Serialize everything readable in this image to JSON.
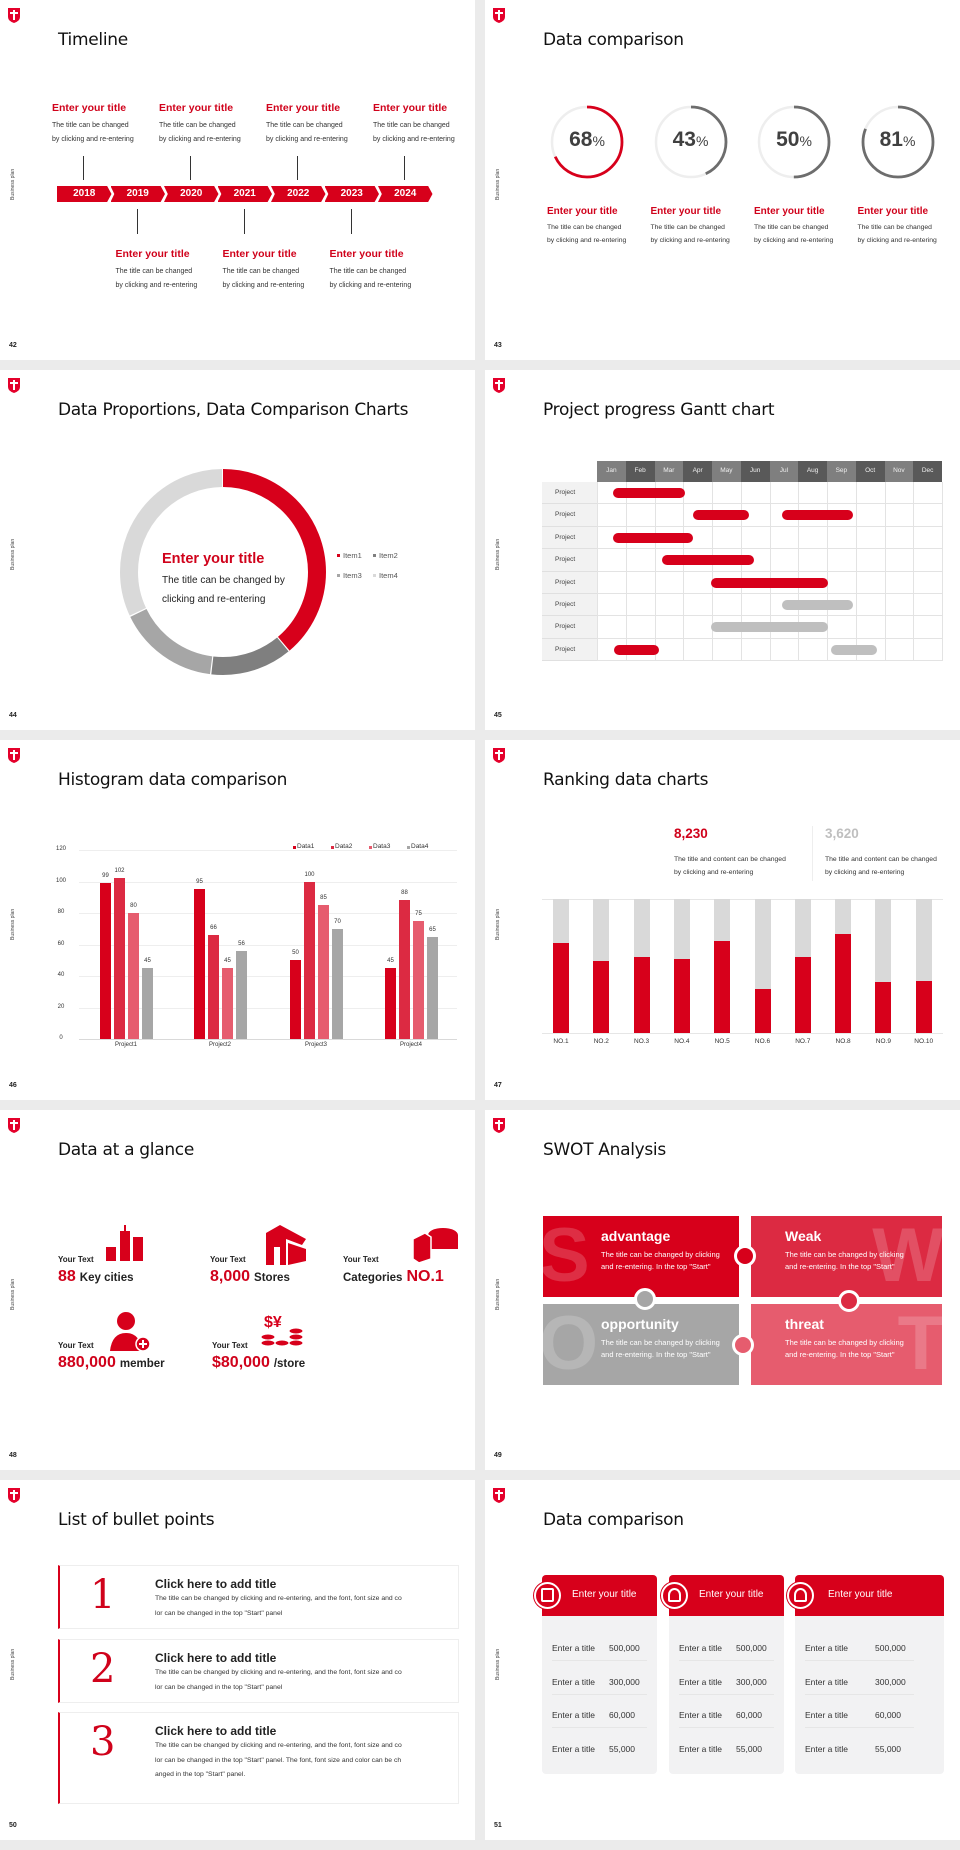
{
  "colors": {
    "brand": "#d7001b",
    "red2": "#dc2a42",
    "red3": "#e65c6e",
    "gray": "#a6a6a6",
    "dark_gray": "#7f7f7f",
    "light_gray": "#d9d9d9"
  },
  "side_label": "Business plan",
  "icons": {
    "logo": "shield-t-logo"
  },
  "timeline": {
    "page": "42",
    "title": "Timeline",
    "years": [
      "2018",
      "2019",
      "2020",
      "2021",
      "2022",
      "2023",
      "2024"
    ],
    "top_items": [
      {
        "title": "Enter your title",
        "desc1": "The title can be changed",
        "desc2": "by clicking and re-entering"
      },
      {
        "title": "Enter your title",
        "desc1": "The title can be changed",
        "desc2": "by clicking and re-entering"
      },
      {
        "title": "Enter your title",
        "desc1": "The title can be changed",
        "desc2": "by clicking and re-entering"
      },
      {
        "title": "Enter your title",
        "desc1": "The title can be changed",
        "desc2": "by clicking and re-entering"
      }
    ],
    "bottom_items": [
      {
        "title": "Enter your title",
        "desc1": "The title can be changed",
        "desc2": "by clicking and re-entering"
      },
      {
        "title": "Enter your title",
        "desc1": "The title can be changed",
        "desc2": "by clicking and re-entering"
      },
      {
        "title": "Enter your title",
        "desc1": "The title can be changed",
        "desc2": "by clicking and re-entering"
      }
    ]
  },
  "rings": {
    "page": "43",
    "title": "Data comparison",
    "items": [
      {
        "value": "68",
        "unit": "%",
        "percent": 68,
        "color": "#d7001b",
        "title": "Enter your title",
        "desc1": "The title can be changed",
        "desc2": "by clicking and re-entering"
      },
      {
        "value": "43",
        "unit": "%",
        "percent": 43,
        "color": "#6d6d6d",
        "title": "Enter your title",
        "desc1": "The title can be changed",
        "desc2": "by clicking and re-entering"
      },
      {
        "value": "50",
        "unit": "%",
        "percent": 50,
        "color": "#6d6d6d",
        "title": "Enter your title",
        "desc1": "The title can be changed",
        "desc2": "by clicking and re-entering"
      },
      {
        "value": "81",
        "unit": "%",
        "percent": 81,
        "color": "#6d6d6d",
        "title": "Enter your title",
        "desc1": "The title can be changed",
        "desc2": "by clicking and re-entering"
      }
    ]
  },
  "proportions": {
    "page": "44",
    "title": "Data Proportions, Data Comparison Charts",
    "center_title": "Enter your title",
    "center_desc1": "The title can be changed by",
    "center_desc2": "clicking and re-entering"
  },
  "gantt": {
    "page": "45",
    "title": "Project progress Gantt chart"
  },
  "histogram": {
    "page": "46",
    "title": "Histogram data comparison"
  },
  "ranking": {
    "page": "47",
    "title": "Ranking data charts",
    "stats": [
      {
        "value": "8,230",
        "color": "#d0021b",
        "desc1": "The title and content can be changed",
        "desc2": "by clicking and re-entering"
      },
      {
        "value": "3,620",
        "color": "#bfbfbf",
        "desc1": "The title and content can be changed",
        "desc2": "by clicking and re-entering"
      }
    ]
  },
  "glance": {
    "page": "48",
    "title": "Data at a glance",
    "items": [
      {
        "label": "Your Text",
        "big": "88",
        "small": "Key cities",
        "order": "big-first",
        "icon": "buildings-icon"
      },
      {
        "label": "Your Text",
        "big": "8,000",
        "small": "Stores",
        "order": "big-first",
        "icon": "store-icon"
      },
      {
        "label": "Your Text",
        "big": "NO.1",
        "small": "Categories",
        "order": "small-first",
        "icon": "pie-chart-icon"
      },
      {
        "label": "Your Text",
        "big": "880,000",
        "small": "member",
        "order": "big-first",
        "icon": "add-member-icon"
      },
      {
        "label": "Your Text",
        "big": "$80,000",
        "small": "/store",
        "order": "big-first",
        "icon": "coins-icon"
      }
    ]
  },
  "swot": {
    "page": "49",
    "title": "SWOT Analysis",
    "tiles": [
      {
        "letter": "S",
        "heading": "advantage",
        "desc1": "The title can be changed by clicking",
        "desc2": "and re-entering. In the top \"Start\"",
        "color": "#d7001b"
      },
      {
        "letter": "W",
        "heading": "Weak",
        "desc1": "The title can be changed by clicking",
        "desc2": "and re-entering. In the top \"Start\"",
        "color": "#dc2a42"
      },
      {
        "letter": "O",
        "heading": "opportunity",
        "desc1": "The title can be changed by clicking",
        "desc2": "and re-entering. In the top \"Start\"",
        "color": "#a6a6a6"
      },
      {
        "letter": "T",
        "heading": "threat",
        "desc1": "The title can be changed by clicking",
        "desc2": "and re-entering. In the top \"Start\"",
        "color": "#e65c6e"
      }
    ]
  },
  "bullets": {
    "page": "50",
    "title": "List of bullet points",
    "items": [
      {
        "num": "1",
        "title": "Click here to add title",
        "lines": [
          "The title can be changed by clicking and re-entering, and the font, font size and co",
          "lor can be changed in the top \"Start\" panel"
        ]
      },
      {
        "num": "2",
        "title": "Click here to add title",
        "lines": [
          "The title can be changed by clicking and re-entering, and the font, font size and co",
          "lor can be changed in the top \"Start\" panel"
        ]
      },
      {
        "num": "3",
        "title": "Click here to add title",
        "lines": [
          "The title can be changed by clicking and re-entering, and the font, font size and co",
          "lor can be changed in the top \"Start\" panel. The font, font size and color can be ch",
          "anged in the top \"Start\" panel."
        ]
      }
    ]
  },
  "cards": {
    "page": "51",
    "title": "Data comparison",
    "items": [
      {
        "title": "Enter your title",
        "icon": "id-card-add-icon",
        "rows": [
          {
            "label": "Enter a title",
            "value": "500,000"
          },
          {
            "label": "Enter a title",
            "value": "300,000"
          },
          {
            "label": "Enter a title",
            "value": "60,000"
          },
          {
            "label": "Enter a title",
            "value": "55,000"
          }
        ]
      },
      {
        "title": "Enter your title",
        "icon": "user-add-icon",
        "rows": [
          {
            "label": "Enter a title",
            "value": "500,000"
          },
          {
            "label": "Enter a title",
            "value": "300,000"
          },
          {
            "label": "Enter a title",
            "value": "60,000"
          },
          {
            "label": "Enter a title",
            "value": "55,000"
          }
        ]
      },
      {
        "title": "Enter your title",
        "icon": "users-group-icon",
        "rows": [
          {
            "label": "Enter a title",
            "value": "500,000"
          },
          {
            "label": "Enter a title",
            "value": "300,000"
          },
          {
            "label": "Enter a title",
            "value": "60,000"
          },
          {
            "label": "Enter a title",
            "value": "55,000"
          }
        ]
      }
    ]
  },
  "chart_data": [
    {
      "type": "pie",
      "variant": "donut",
      "categories": [
        "Item1",
        "Item2",
        "Item3",
        "Item4"
      ],
      "values": [
        39,
        13,
        16,
        32
      ],
      "colors": [
        "#d7001b",
        "#7f7f7f",
        "#a6a6a6",
        "#d9d9d9"
      ],
      "legend": "right"
    },
    {
      "type": "gantt",
      "months": [
        "Jan",
        "Feb",
        "Mar",
        "Apr",
        "May",
        "Jun",
        "Jul",
        "Aug",
        "Sep",
        "Oct",
        "Nov",
        "Dec"
      ],
      "rows": [
        {
          "label": "Project",
          "bars": [
            {
              "start": 0.55,
              "end": 3.05,
              "status": "red"
            }
          ]
        },
        {
          "label": "Project",
          "bars": [
            {
              "start": 3.35,
              "end": 5.3,
              "status": "red"
            },
            {
              "start": 6.45,
              "end": 8.9,
              "status": "red"
            }
          ]
        },
        {
          "label": "Project",
          "bars": [
            {
              "start": 0.55,
              "end": 3.35,
              "status": "red"
            }
          ]
        },
        {
          "label": "Project",
          "bars": [
            {
              "start": 2.25,
              "end": 5.45,
              "status": "red"
            }
          ]
        },
        {
          "label": "Project",
          "bars": [
            {
              "start": 3.95,
              "end": 8.05,
              "status": "red"
            }
          ]
        },
        {
          "label": "Project",
          "bars": [
            {
              "start": 6.45,
              "end": 8.9,
              "status": "gray"
            }
          ]
        },
        {
          "label": "Project",
          "bars": [
            {
              "start": 3.95,
              "end": 8.05,
              "status": "gray"
            }
          ]
        },
        {
          "label": "Project",
          "bars": [
            {
              "start": 0.6,
              "end": 2.15,
              "status": "red"
            },
            {
              "start": 8.15,
              "end": 9.75,
              "status": "gray"
            }
          ]
        }
      ]
    },
    {
      "type": "bar",
      "categories": [
        "Project1",
        "Project2",
        "Project3",
        "Project4"
      ],
      "series": [
        {
          "name": "Data1",
          "values": [
            99,
            95,
            50,
            45
          ],
          "color": "#d7001b"
        },
        {
          "name": "Data2",
          "values": [
            102,
            66,
            100,
            88
          ],
          "color": "#dc2a42"
        },
        {
          "name": "Data3",
          "values": [
            80,
            45,
            85,
            75
          ],
          "color": "#e65c6e"
        },
        {
          "name": "Data4",
          "values": [
            45,
            56,
            70,
            65
          ],
          "color": "#a6a6a6"
        }
      ],
      "ylim": [
        0,
        120
      ],
      "yticks": [
        0,
        20,
        40,
        60,
        80,
        100,
        120
      ],
      "grid": true,
      "legend": "top-right"
    },
    {
      "type": "bar",
      "variant": "stacked-100",
      "categories": [
        "NO.1",
        "NO.2",
        "NO.3",
        "NO.4",
        "NO.5",
        "NO.6",
        "NO.7",
        "NO.8",
        "NO.9",
        "NO.10"
      ],
      "values": [
        0.67,
        0.54,
        0.57,
        0.55,
        0.69,
        0.33,
        0.57,
        0.74,
        0.38,
        0.39
      ],
      "ylim": [
        0,
        1
      ]
    }
  ]
}
